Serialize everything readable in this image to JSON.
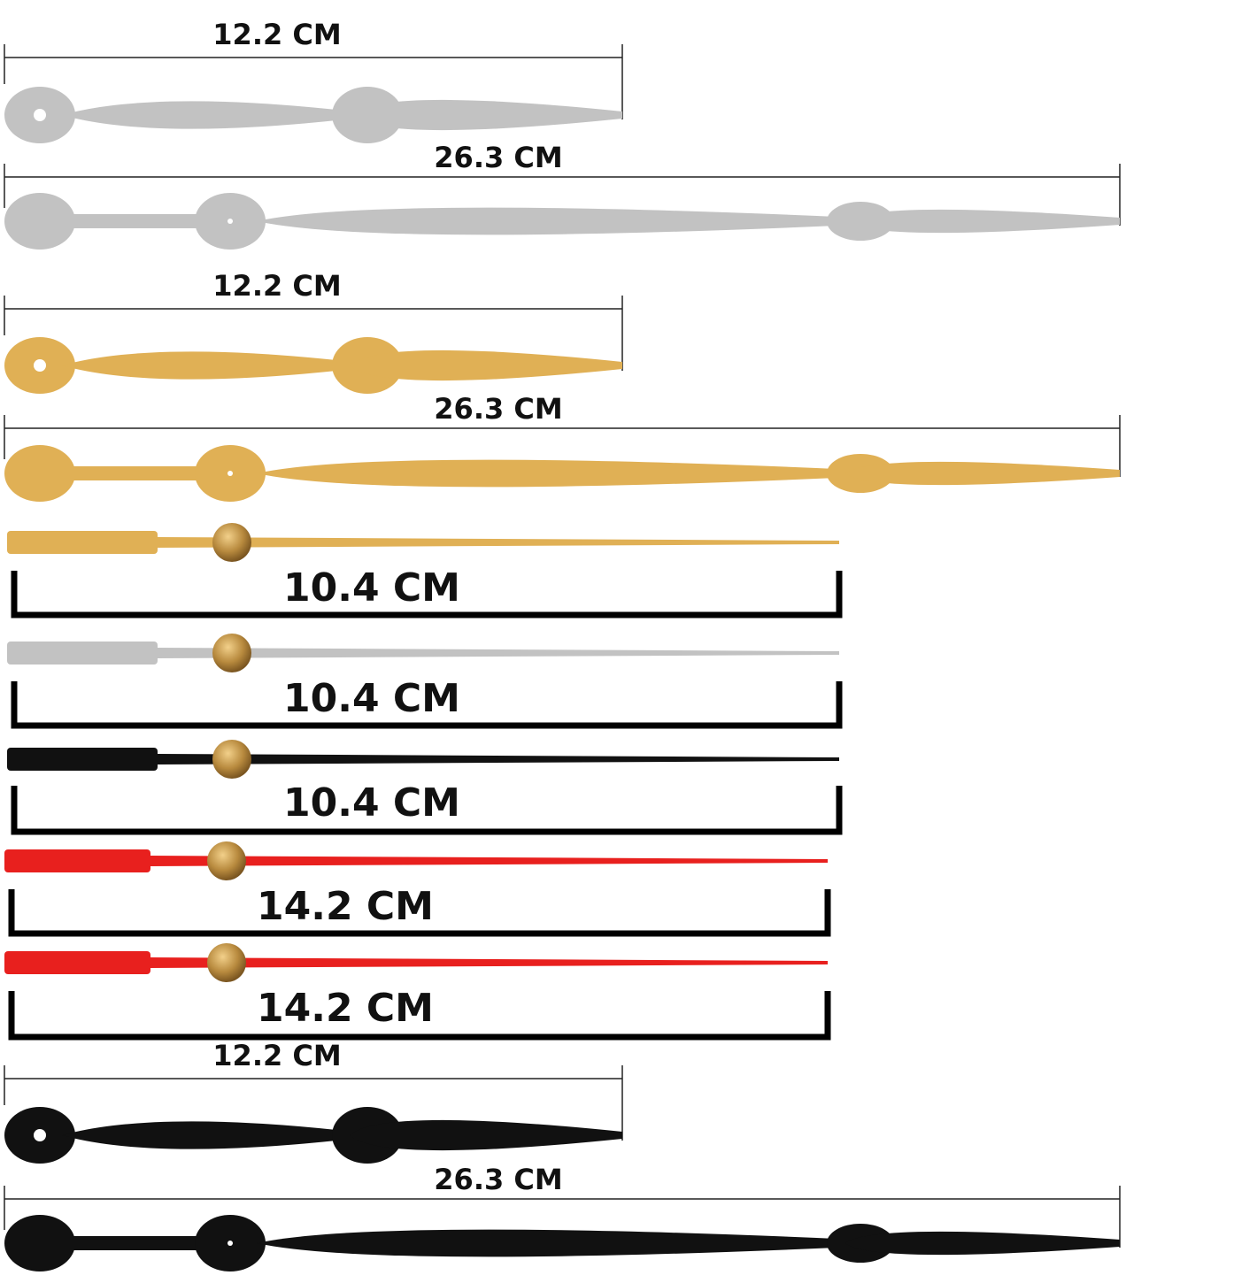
{
  "labels": [
    "12.2 CM",
    "26.3 CM",
    "12.2 CM",
    "26.3 CM",
    "10.4 CM",
    "10.4 CM",
    "10.4 CM",
    "14.2 CM",
    "14.2 CM",
    "12.2 CM",
    "26.3 CM"
  ]
}
